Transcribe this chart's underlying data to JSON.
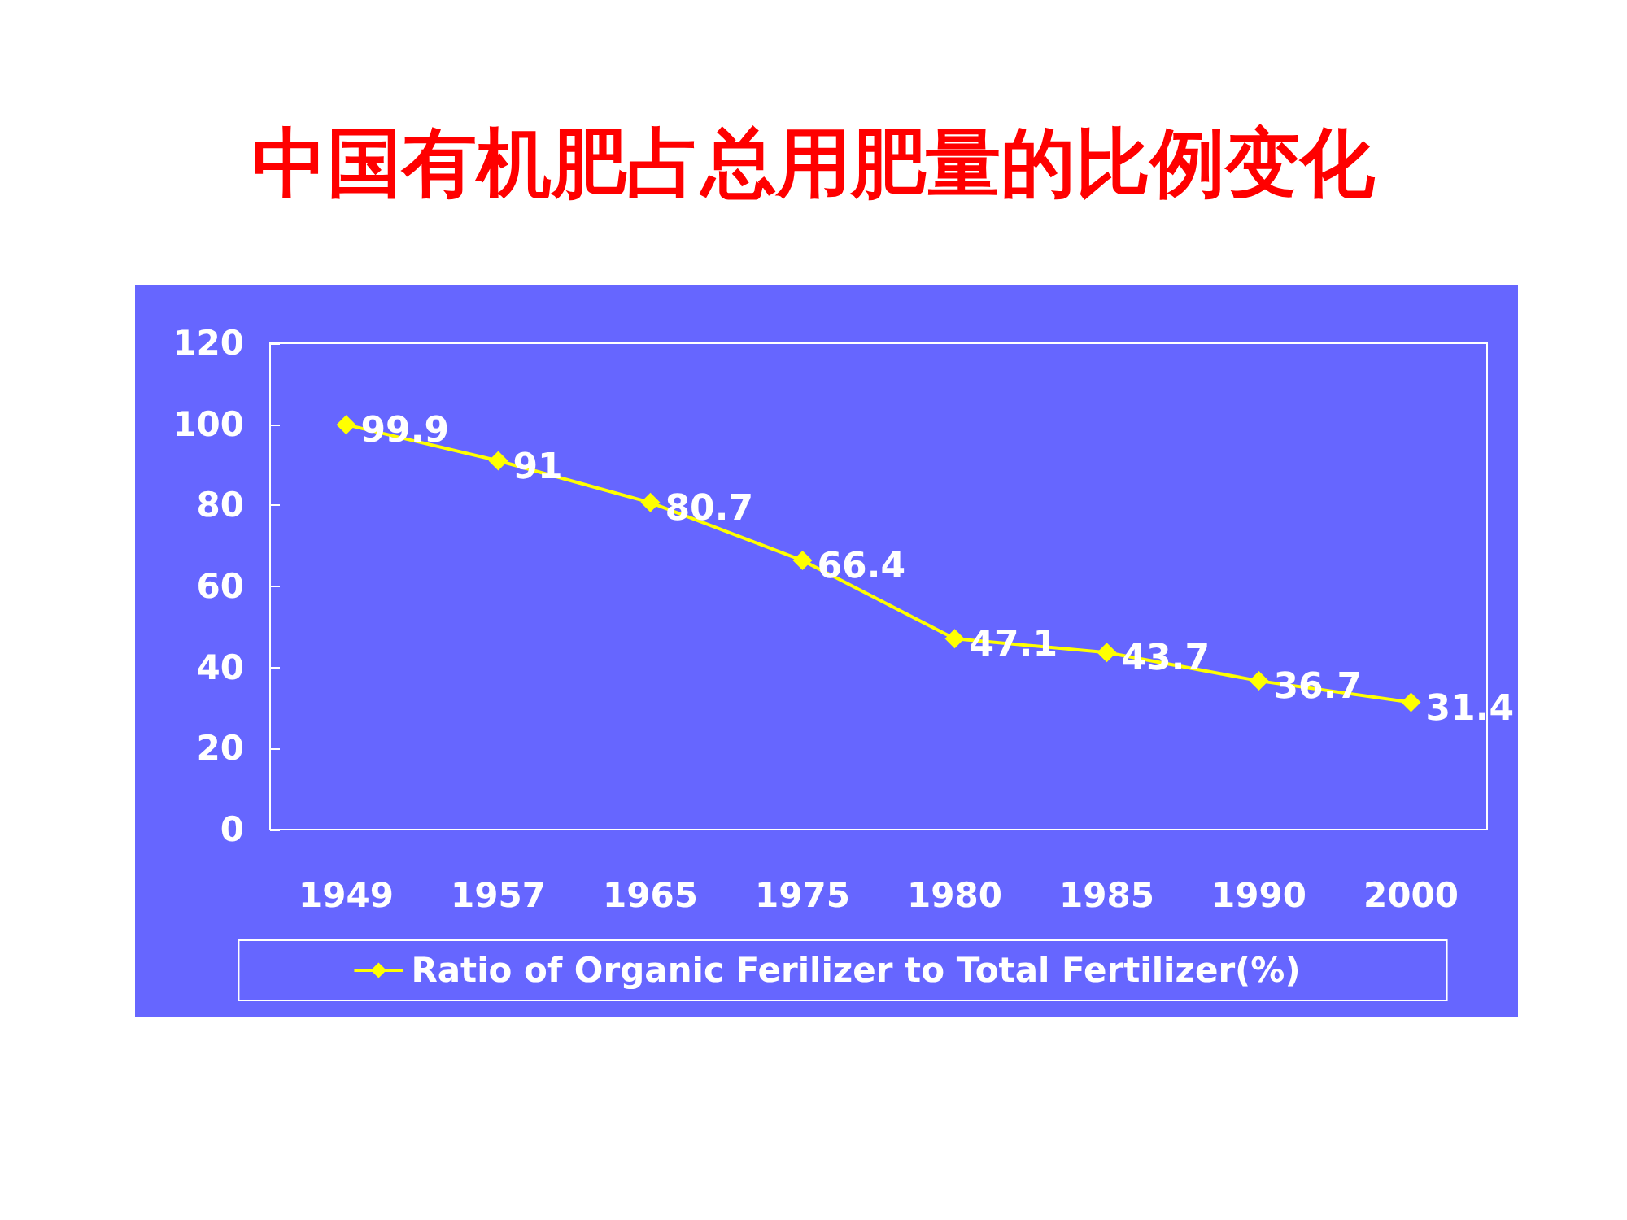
{
  "chart_data": {
    "type": "line",
    "title": "中国有机肥占总用肥量的比例变化",
    "categories": [
      "1949",
      "1957",
      "1965",
      "1975",
      "1980",
      "1985",
      "1990",
      "2000"
    ],
    "series": [
      {
        "name": "Ratio of Organic Ferilizer to Total Fertilizer(%)",
        "color": "#ffff00",
        "values": [
          99.9,
          91,
          80.7,
          66.4,
          47.1,
          43.7,
          36.7,
          31.4
        ]
      }
    ],
    "ylim": [
      0,
      120
    ],
    "yticks": [
      0,
      20,
      40,
      60,
      80,
      100,
      120
    ],
    "grid": false,
    "legend": "bottom",
    "marker": "diamond",
    "line_style": "solid",
    "data_labels": true
  }
}
